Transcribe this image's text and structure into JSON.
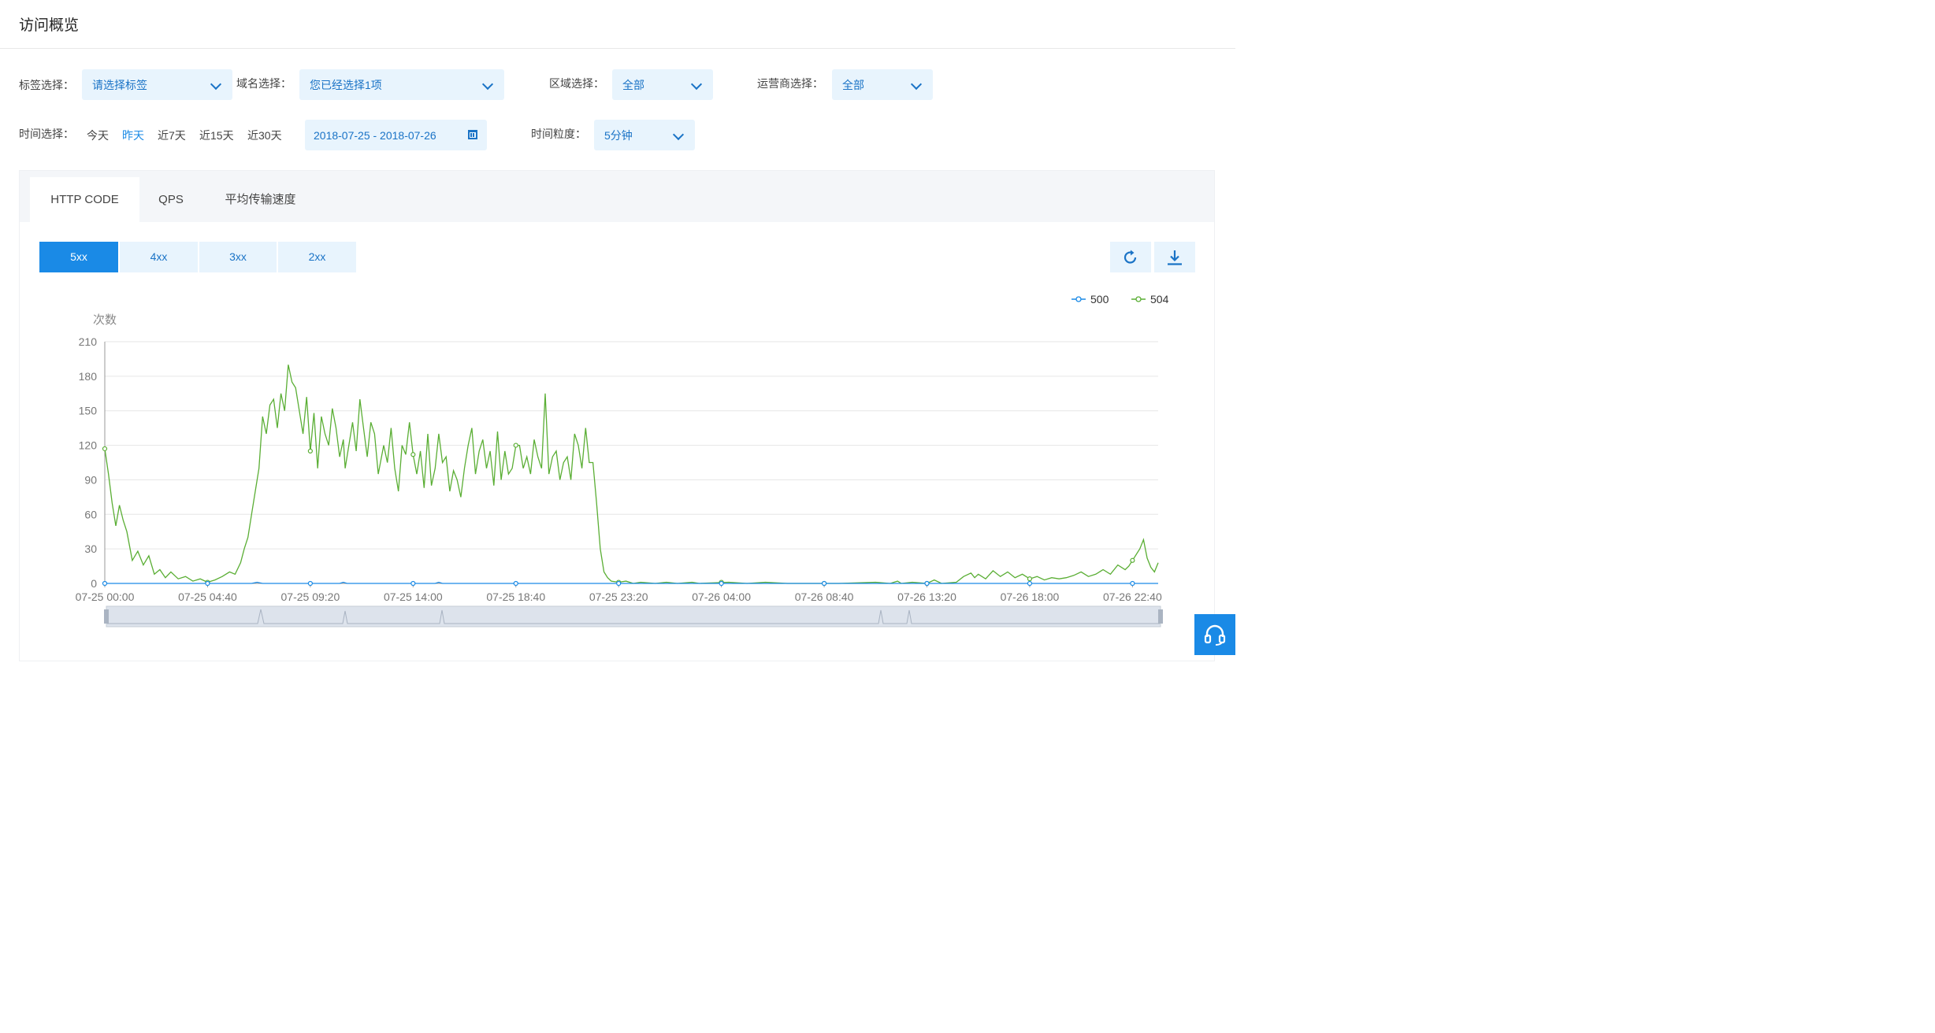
{
  "page": {
    "title": "访问概览"
  },
  "filters": {
    "tag_label": "标签选择：",
    "tag_value": "请选择标签",
    "domain_label": "域名选择：",
    "domain_value": "您已经选择1项",
    "region_label": "区域选择：",
    "region_value": "全部",
    "isp_label": "运营商选择：",
    "isp_value": "全部",
    "time_label": "时间选择：",
    "quick_ranges": [
      "今天",
      "昨天",
      "近7天",
      "近15天",
      "近30天"
    ],
    "quick_active": 1,
    "date_range": "2018-07-25 - 2018-07-26",
    "granularity_label": "时间粒度：",
    "granularity_value": "5分钟"
  },
  "tabs": [
    "HTTP CODE",
    "QPS",
    "平均传输速度"
  ],
  "tab_active": 0,
  "code_buttons": [
    "5xx",
    "4xx",
    "3xx",
    "2xx"
  ],
  "code_active": 0,
  "icons": {
    "refresh": "refresh-icon",
    "download": "download-icon",
    "help": "headset-icon",
    "calendar": "calendar-icon"
  },
  "colors": {
    "accent": "#1a8ae6",
    "series_500": "#1a8ae6",
    "series_504": "#5aae34"
  },
  "chart_data": {
    "type": "line",
    "ylabel": "次数",
    "ylim": [
      0,
      210
    ],
    "yticks": [
      0,
      30,
      60,
      90,
      120,
      150,
      180,
      210
    ],
    "xlim": [
      0,
      2870
    ],
    "xtick_positions": [
      0,
      280,
      560,
      840,
      1120,
      1400,
      1680,
      1960,
      2240,
      2520,
      2800
    ],
    "xtick_labels": [
      "07-25 00:00",
      "07-25 04:40",
      "07-25 09:20",
      "07-25 14:00",
      "07-25 18:40",
      "07-25 23:20",
      "07-26 04:00",
      "07-26 08:40",
      "07-26 13:20",
      "07-26 18:00",
      "07-26 22:40"
    ],
    "legend": [
      "500",
      "504"
    ],
    "legend_position": "top-right",
    "grid": true,
    "series": [
      {
        "name": "500",
        "points": [
          [
            0,
            0
          ],
          [
            400,
            0
          ],
          [
            415,
            1
          ],
          [
            430,
            0
          ],
          [
            640,
            0
          ],
          [
            650,
            1
          ],
          [
            660,
            0
          ],
          [
            900,
            0
          ],
          [
            910,
            1
          ],
          [
            920,
            0
          ],
          [
            2500,
            0
          ],
          [
            2870,
            0
          ]
        ]
      },
      {
        "name": "504",
        "points": [
          [
            0,
            117
          ],
          [
            10,
            95
          ],
          [
            20,
            70
          ],
          [
            30,
            50
          ],
          [
            40,
            68
          ],
          [
            50,
            55
          ],
          [
            60,
            45
          ],
          [
            75,
            20
          ],
          [
            90,
            28
          ],
          [
            105,
            16
          ],
          [
            120,
            24
          ],
          [
            135,
            8
          ],
          [
            150,
            12
          ],
          [
            165,
            5
          ],
          [
            180,
            10
          ],
          [
            200,
            4
          ],
          [
            220,
            6
          ],
          [
            240,
            2
          ],
          [
            260,
            4
          ],
          [
            280,
            1
          ],
          [
            300,
            3
          ],
          [
            320,
            6
          ],
          [
            340,
            10
          ],
          [
            355,
            8
          ],
          [
            370,
            18
          ],
          [
            380,
            30
          ],
          [
            390,
            40
          ],
          [
            400,
            60
          ],
          [
            410,
            80
          ],
          [
            420,
            100
          ],
          [
            430,
            145
          ],
          [
            440,
            130
          ],
          [
            450,
            155
          ],
          [
            460,
            160
          ],
          [
            470,
            135
          ],
          [
            480,
            165
          ],
          [
            490,
            150
          ],
          [
            500,
            190
          ],
          [
            510,
            175
          ],
          [
            520,
            170
          ],
          [
            530,
            150
          ],
          [
            540,
            130
          ],
          [
            550,
            162
          ],
          [
            560,
            115
          ],
          [
            570,
            148
          ],
          [
            580,
            100
          ],
          [
            590,
            145
          ],
          [
            600,
            130
          ],
          [
            610,
            120
          ],
          [
            620,
            152
          ],
          [
            630,
            135
          ],
          [
            640,
            110
          ],
          [
            650,
            125
          ],
          [
            655,
            100
          ],
          [
            665,
            120
          ],
          [
            675,
            140
          ],
          [
            685,
            115
          ],
          [
            695,
            160
          ],
          [
            705,
            135
          ],
          [
            715,
            110
          ],
          [
            725,
            140
          ],
          [
            735,
            130
          ],
          [
            745,
            95
          ],
          [
            760,
            120
          ],
          [
            770,
            105
          ],
          [
            780,
            135
          ],
          [
            790,
            100
          ],
          [
            800,
            80
          ],
          [
            810,
            120
          ],
          [
            820,
            112
          ],
          [
            830,
            140
          ],
          [
            840,
            112
          ],
          [
            850,
            95
          ],
          [
            860,
            115
          ],
          [
            870,
            83
          ],
          [
            880,
            130
          ],
          [
            890,
            85
          ],
          [
            900,
            100
          ],
          [
            910,
            130
          ],
          [
            920,
            105
          ],
          [
            930,
            110
          ],
          [
            940,
            80
          ],
          [
            950,
            98
          ],
          [
            960,
            90
          ],
          [
            970,
            75
          ],
          [
            980,
            100
          ],
          [
            990,
            120
          ],
          [
            1000,
            135
          ],
          [
            1010,
            95
          ],
          [
            1020,
            115
          ],
          [
            1030,
            125
          ],
          [
            1040,
            100
          ],
          [
            1050,
            115
          ],
          [
            1060,
            85
          ],
          [
            1070,
            132
          ],
          [
            1080,
            90
          ],
          [
            1090,
            115
          ],
          [
            1100,
            95
          ],
          [
            1110,
            100
          ],
          [
            1120,
            120
          ],
          [
            1130,
            120
          ],
          [
            1140,
            100
          ],
          [
            1150,
            110
          ],
          [
            1160,
            95
          ],
          [
            1170,
            125
          ],
          [
            1180,
            110
          ],
          [
            1190,
            100
          ],
          [
            1200,
            165
          ],
          [
            1210,
            95
          ],
          [
            1220,
            110
          ],
          [
            1230,
            115
          ],
          [
            1240,
            90
          ],
          [
            1250,
            105
          ],
          [
            1260,
            110
          ],
          [
            1270,
            90
          ],
          [
            1280,
            130
          ],
          [
            1290,
            120
          ],
          [
            1300,
            100
          ],
          [
            1310,
            135
          ],
          [
            1320,
            105
          ],
          [
            1330,
            105
          ],
          [
            1340,
            70
          ],
          [
            1350,
            30
          ],
          [
            1360,
            10
          ],
          [
            1370,
            5
          ],
          [
            1380,
            2
          ],
          [
            1400,
            1
          ],
          [
            1420,
            2
          ],
          [
            1440,
            0
          ],
          [
            1460,
            1
          ],
          [
            1500,
            0
          ],
          [
            1530,
            1
          ],
          [
            1560,
            0
          ],
          [
            1600,
            1
          ],
          [
            1620,
            0
          ],
          [
            1700,
            1
          ],
          [
            1750,
            0
          ],
          [
            1800,
            1
          ],
          [
            1860,
            0
          ],
          [
            2000,
            0
          ],
          [
            2100,
            1
          ],
          [
            2140,
            0
          ],
          [
            2160,
            2
          ],
          [
            2170,
            0
          ],
          [
            2200,
            1
          ],
          [
            2240,
            0
          ],
          [
            2260,
            3
          ],
          [
            2280,
            0
          ],
          [
            2320,
            1
          ],
          [
            2340,
            6
          ],
          [
            2360,
            9
          ],
          [
            2370,
            5
          ],
          [
            2380,
            8
          ],
          [
            2400,
            4
          ],
          [
            2420,
            11
          ],
          [
            2440,
            6
          ],
          [
            2460,
            10
          ],
          [
            2480,
            5
          ],
          [
            2500,
            8
          ],
          [
            2520,
            4
          ],
          [
            2540,
            6
          ],
          [
            2560,
            3
          ],
          [
            2580,
            5
          ],
          [
            2600,
            4
          ],
          [
            2620,
            5
          ],
          [
            2640,
            7
          ],
          [
            2660,
            10
          ],
          [
            2680,
            6
          ],
          [
            2700,
            8
          ],
          [
            2720,
            12
          ],
          [
            2740,
            8
          ],
          [
            2760,
            16
          ],
          [
            2780,
            12
          ],
          [
            2790,
            15
          ],
          [
            2800,
            20
          ],
          [
            2810,
            25
          ],
          [
            2820,
            30
          ],
          [
            2830,
            38
          ],
          [
            2840,
            22
          ],
          [
            2850,
            14
          ],
          [
            2860,
            10
          ],
          [
            2870,
            18
          ]
        ]
      }
    ]
  }
}
